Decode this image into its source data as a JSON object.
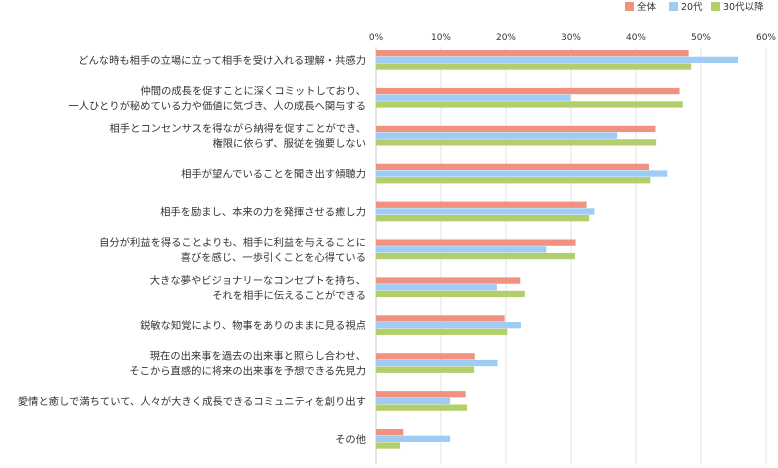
{
  "chart_data": {
    "type": "bar",
    "orientation": "horizontal",
    "xlim": [
      0,
      60
    ],
    "tick_labels": [
      "0%",
      "10%",
      "20%",
      "30%",
      "40%",
      "50%",
      "60%"
    ],
    "grid": true,
    "legend_position": "top-right",
    "categories": [
      [
        "どんな時も相手の立場に立って相手を受け入れる理解・共感力"
      ],
      [
        "仲間の成長を促すことに深くコミットしており、",
        "一人ひとりが秘めている力や価値に気づき、人の成長へ関与する"
      ],
      [
        "相手とコンセンサスを得ながら納得を促すことができ、",
        "権限に依らず、服従を強要しない"
      ],
      [
        "相手が望んでいることを聞き出す傾聴力"
      ],
      [
        "相手を励まし、本来の力を発揮させる癒し力"
      ],
      [
        "自分が利益を得ることよりも、相手に利益を与えることに",
        "喜びを感じ、一歩引くことを心得ている"
      ],
      [
        "大きな夢やビジョナリーなコンセプトを持ち、",
        "それを相手に伝えることができる"
      ],
      [
        "鋭敏な知覚により、物事をありのままに見る視点"
      ],
      [
        "現在の出来事を過去の出来事と照らし合わせ、",
        "そこから直感的に将来の出来事を予想できる先見力"
      ],
      [
        "愛情と癒しで満ちていて、人々が大きく成長できるコミュニティを創り出す"
      ],
      [
        "その他"
      ]
    ],
    "series": [
      {
        "name": "全体",
        "color": "#f0927f",
        "values": [
          48.1,
          46.7,
          43.0,
          42.0,
          32.4,
          30.7,
          22.2,
          19.8,
          15.2,
          13.8,
          4.2
        ]
      },
      {
        "name": "20代",
        "color": "#9fccf5",
        "values": [
          55.7,
          29.9,
          37.1,
          44.8,
          33.6,
          26.2,
          18.6,
          22.3,
          18.7,
          11.4,
          11.4
        ]
      },
      {
        "name": "30代以降",
        "color": "#b2cf6b",
        "values": [
          48.5,
          47.2,
          43.1,
          42.2,
          32.8,
          30.6,
          22.9,
          20.2,
          15.1,
          14.0,
          3.7
        ]
      }
    ]
  }
}
